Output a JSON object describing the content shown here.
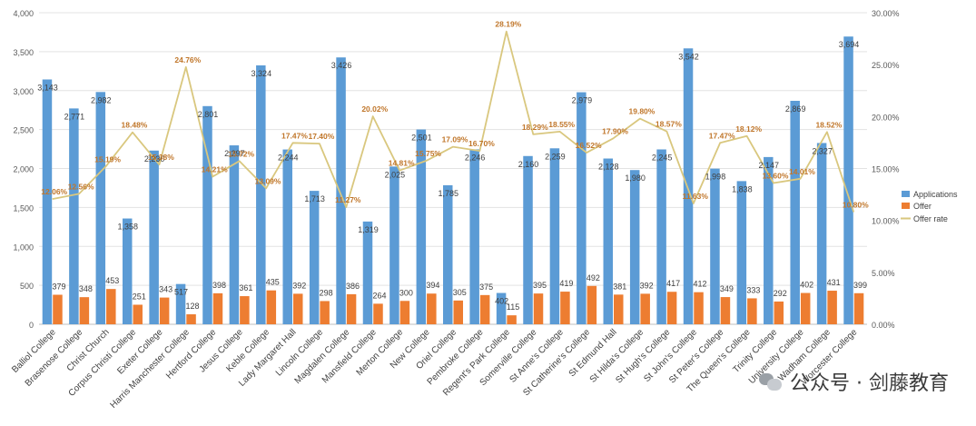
{
  "chart_data": {
    "type": "bar",
    "categories": [
      "Balliol College",
      "Brasenose College",
      "Christ Church",
      "Corpus Christi College",
      "Exeter College",
      "Harris Manchester College",
      "Hertford College",
      "Jesus College",
      "Keble College",
      "Lady Margaret Hall",
      "Lincoln College",
      "Magdalen College",
      "Mansfield College",
      "Merton College",
      "New College",
      "Oriel College",
      "Pembroke College",
      "Regent's Park College",
      "Somerville College",
      "St Anne's College",
      "St Catherine's College",
      "St Edmund Hall",
      "St Hilda's College",
      "St Hugh's College",
      "St John's College",
      "St Peter's College",
      "The Queen's College",
      "Trinity College",
      "University College",
      "Wadham College",
      "Worcester College"
    ],
    "series": [
      {
        "name": "Applications",
        "axis": "left",
        "color": "#5b9bd5",
        "values": [
          3143,
          2771,
          2982,
          1358,
          2230,
          517,
          2801,
          2297,
          3324,
          2244,
          1713,
          3426,
          1319,
          2025,
          2501,
          1785,
          2246,
          402,
          2160,
          2259,
          2979,
          2128,
          1980,
          2245,
          3542,
          1998,
          1838,
          2147,
          2869,
          2327,
          3694
        ],
        "labels": [
          "3,143",
          "2,771",
          "2,982",
          "1,358",
          "2,230",
          "517",
          "2,801",
          "2,297",
          "3,324",
          "2,244",
          "1,713",
          "3,426",
          "1,319",
          "2,025",
          "2,501",
          "1,785",
          "2,246",
          "402",
          "2,160",
          "2,259",
          "2,979",
          "2,128",
          "1,980",
          "2,245",
          "3,542",
          "1,998",
          "1,838",
          "2,147",
          "2,869",
          "2,327",
          "3,694"
        ]
      },
      {
        "name": "Offer",
        "axis": "left",
        "color": "#ed7d31",
        "values": [
          379,
          348,
          453,
          251,
          343,
          128,
          398,
          361,
          435,
          392,
          298,
          386,
          264,
          300,
          394,
          305,
          375,
          115,
          395,
          419,
          492,
          381,
          392,
          417,
          412,
          349,
          333,
          292,
          402,
          431,
          399
        ],
        "labels": [
          "379",
          "348",
          "453",
          "251",
          "343",
          "128",
          "398",
          "361",
          "435",
          "392",
          "298",
          "386",
          "264",
          "300",
          "394",
          "305",
          "375",
          "115",
          "395",
          "419",
          "492",
          "381",
          "392",
          "417",
          "412",
          "349",
          "333",
          "292",
          "402",
          "431",
          "399"
        ]
      },
      {
        "name": "Offer rate",
        "axis": "right",
        "color": "#d9c77e",
        "values": [
          12.06,
          12.56,
          15.19,
          18.48,
          15.38,
          24.76,
          14.21,
          15.72,
          13.09,
          17.47,
          17.4,
          11.27,
          20.02,
          14.81,
          15.75,
          17.09,
          16.7,
          28.19,
          18.29,
          18.55,
          16.52,
          17.9,
          19.8,
          18.57,
          11.63,
          17.47,
          18.12,
          13.6,
          14.01,
          18.52,
          10.8
        ],
        "labels": [
          "12.06%",
          "12.56%",
          "15.19%",
          "18.48%",
          "15.38%",
          "24.76%",
          "14.21%",
          "15.72%",
          "13.09%",
          "17.47%",
          "17.40%",
          "11.27%",
          "20.02%",
          "14.81%",
          "15.75%",
          "17.09%",
          "16.70%",
          "28.19%",
          "18.29%",
          "18.55%",
          "16.52%",
          "17.90%",
          "19.80%",
          "18.57%",
          "11.63%",
          "17.47%",
          "18.12%",
          "13.60%",
          "14.01%",
          "18.52%",
          "10.80%"
        ]
      }
    ],
    "y_left": {
      "min": 0,
      "max": 4000,
      "ticks": [
        0,
        500,
        1000,
        1500,
        2000,
        2500,
        3000,
        3500,
        4000
      ],
      "tick_labels": [
        "0",
        "500",
        "1,000",
        "1,500",
        "2,000",
        "2,500",
        "3,000",
        "3,500",
        "4,000"
      ]
    },
    "y_right": {
      "min": 0,
      "max": 30,
      "ticks": [
        0,
        5,
        10,
        15,
        20,
        25,
        30
      ],
      "tick_labels": [
        "0.00%",
        "5.00%",
        "10.00%",
        "15.00%",
        "20.00%",
        "25.00%",
        "30.00%"
      ]
    },
    "legend_position": "right",
    "grid": true,
    "colors": {
      "applications": "#5b9bd5",
      "offer": "#ed7d31",
      "offer_rate": "#d9c77e",
      "rate_label": "#c0762a"
    }
  },
  "watermark": {
    "text": "公众号 · 剑藤教育",
    "icon": "wechat-icon"
  }
}
